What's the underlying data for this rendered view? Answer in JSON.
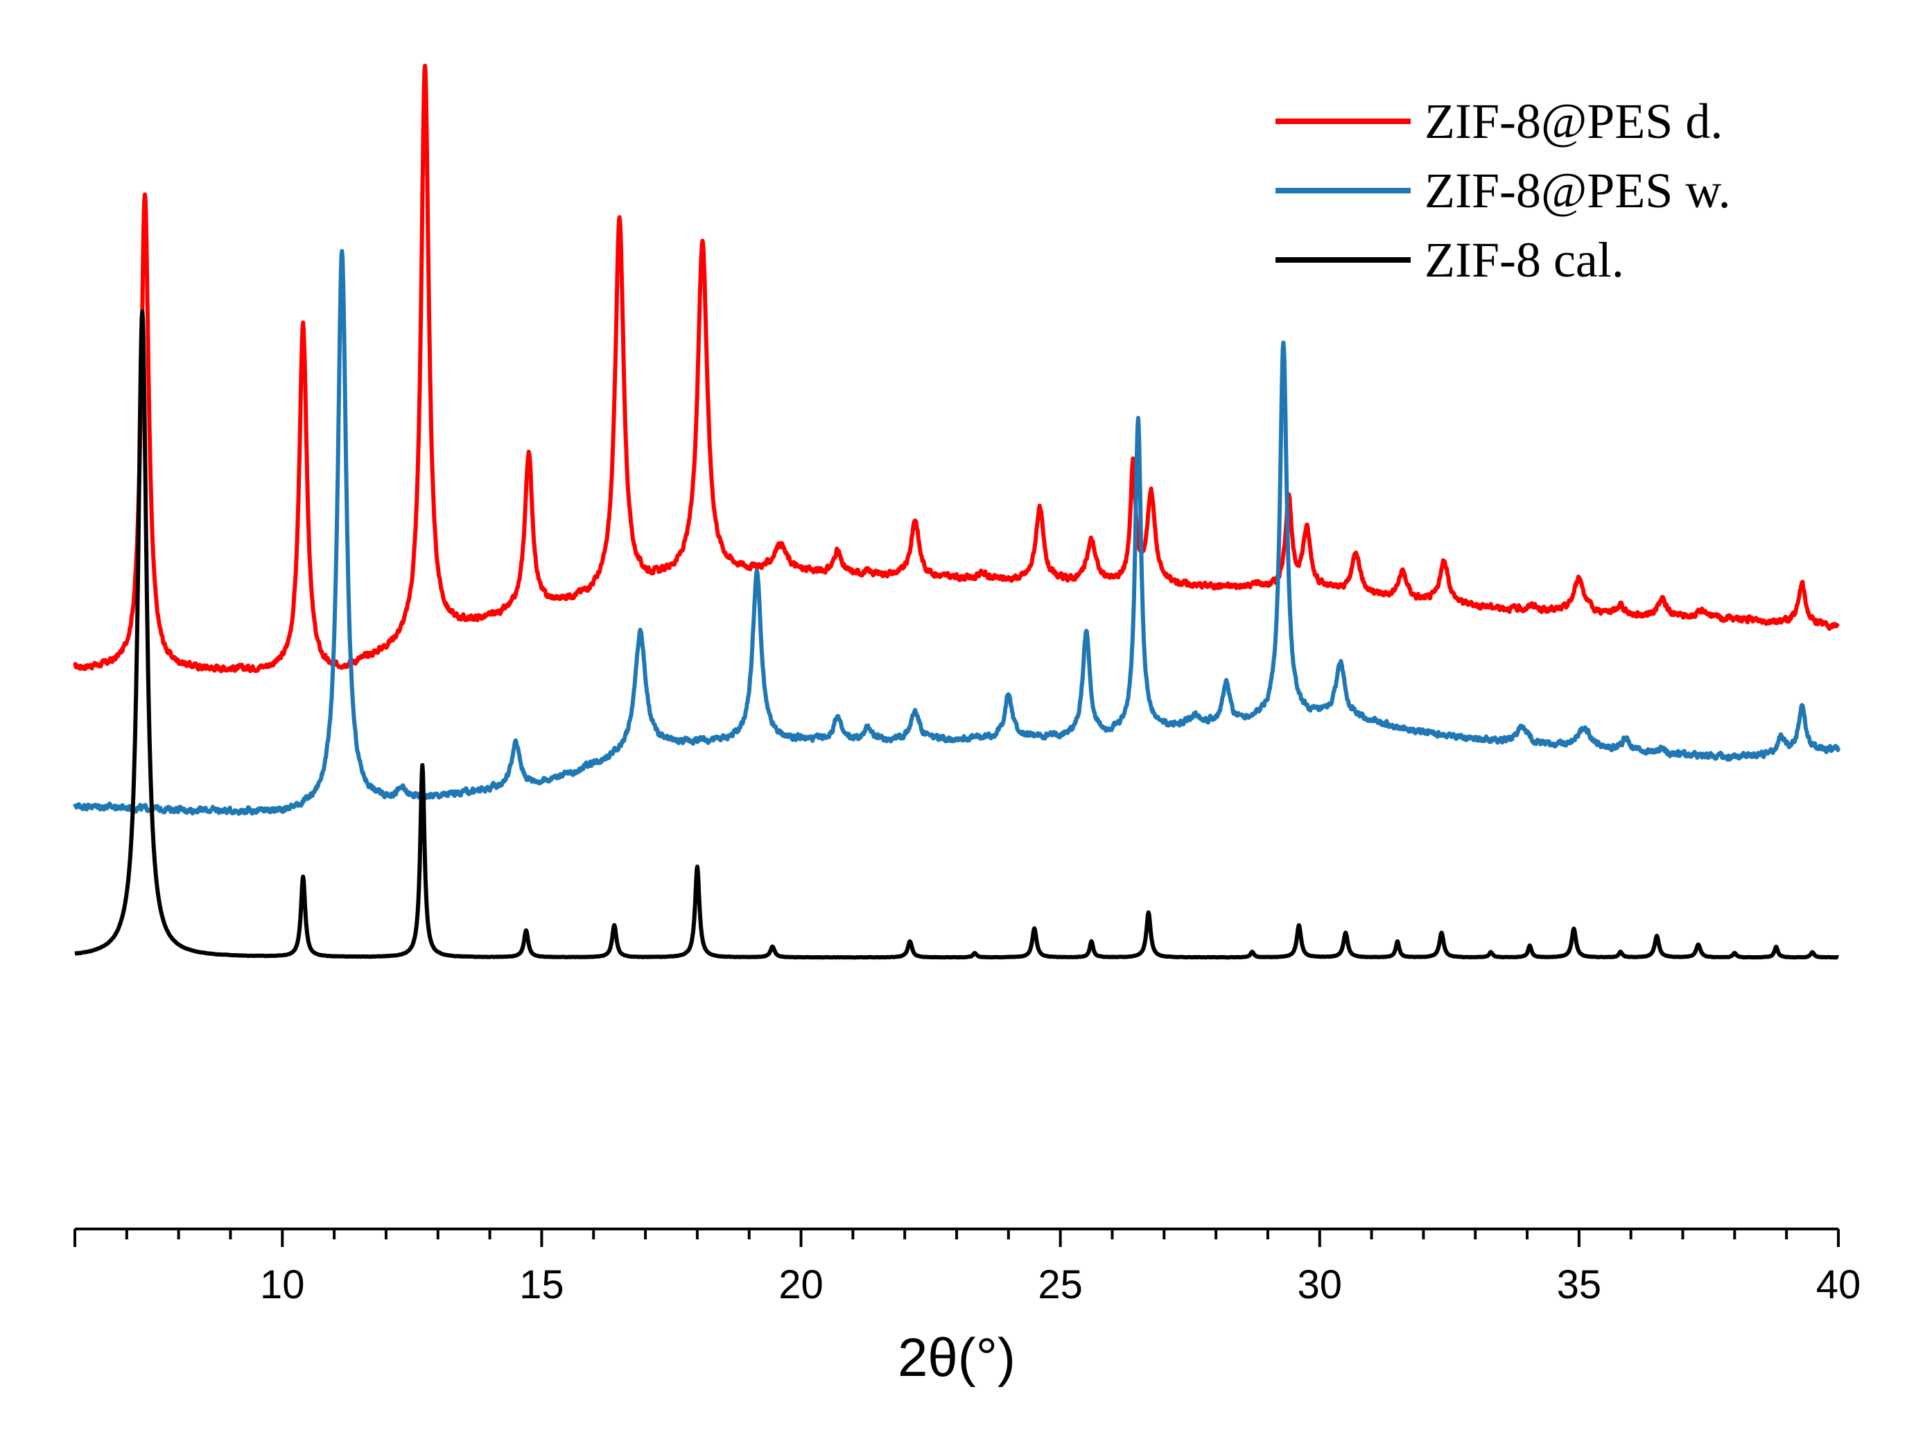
{
  "chart_data": {
    "type": "line",
    "title": "",
    "xlabel": "2θ(°)",
    "ylabel": "",
    "xlim": [
      6,
      40
    ],
    "ylim": [
      0,
      100
    ],
    "x_ticks": [
      10,
      15,
      20,
      25,
      30,
      35,
      40
    ],
    "minor_tick_step": 1,
    "grid": false,
    "legend_position": "top-right",
    "series": [
      {
        "name": "ZIF-8@PES d.",
        "color": "#ff0000",
        "baseline": [
          [
            6,
            42.5
          ],
          [
            9,
            42.3
          ],
          [
            11,
            42.0
          ],
          [
            13,
            45.8
          ],
          [
            14.5,
            47.6
          ],
          [
            16,
            49.2
          ],
          [
            18,
            51.5
          ],
          [
            20,
            51.5
          ],
          [
            22,
            51.2
          ],
          [
            24,
            50.8
          ],
          [
            26,
            50.5
          ],
          [
            28,
            50.2
          ],
          [
            30,
            50.0
          ],
          [
            32,
            48.8
          ],
          [
            34,
            48.0
          ],
          [
            36,
            47.5
          ],
          [
            38,
            47.2
          ],
          [
            40,
            46.5
          ]
        ],
        "peaks": [
          {
            "x": 7.35,
            "y": 87,
            "w": 0.09
          },
          {
            "x": 10.4,
            "y": 74.5,
            "w": 0.09
          },
          {
            "x": 12.75,
            "y": 99,
            "w": 0.09
          },
          {
            "x": 14.75,
            "y": 62.5,
            "w": 0.09
          },
          {
            "x": 16.5,
            "y": 84.5,
            "w": 0.1
          },
          {
            "x": 18.1,
            "y": 82.5,
            "w": 0.11
          },
          {
            "x": 19.6,
            "y": 54,
            "w": 0.15
          },
          {
            "x": 20.7,
            "y": 53.5,
            "w": 0.08
          },
          {
            "x": 21.3,
            "y": 51.5,
            "w": 0.1
          },
          {
            "x": 22.2,
            "y": 56.5,
            "w": 0.09
          },
          {
            "x": 23.5,
            "y": 51.5,
            "w": 0.08
          },
          {
            "x": 24.6,
            "y": 57.5,
            "w": 0.09
          },
          {
            "x": 25.6,
            "y": 54.5,
            "w": 0.1
          },
          {
            "x": 26.4,
            "y": 61.5,
            "w": 0.06
          },
          {
            "x": 26.75,
            "y": 59,
            "w": 0.09
          },
          {
            "x": 28.8,
            "y": 50.5,
            "w": 0.07
          },
          {
            "x": 29.4,
            "y": 58.5,
            "w": 0.07
          },
          {
            "x": 29.75,
            "y": 55.5,
            "w": 0.09
          },
          {
            "x": 30.7,
            "y": 53.5,
            "w": 0.09
          },
          {
            "x": 31.6,
            "y": 51.5,
            "w": 0.1
          },
          {
            "x": 32.4,
            "y": 52.5,
            "w": 0.1
          },
          {
            "x": 34.1,
            "y": 48.5,
            "w": 0.07
          },
          {
            "x": 35.0,
            "y": 51.0,
            "w": 0.12
          },
          {
            "x": 35.8,
            "y": 48.5,
            "w": 0.08
          },
          {
            "x": 36.6,
            "y": 49.0,
            "w": 0.1
          },
          {
            "x": 37.4,
            "y": 48.0,
            "w": 0.1
          },
          {
            "x": 39.3,
            "y": 50.5,
            "w": 0.08
          }
        ]
      },
      {
        "name": "ZIF-8@PES w.",
        "color": "#1f77b4",
        "baseline": [
          [
            6,
            29.7
          ],
          [
            8,
            29.3
          ],
          [
            10,
            29.0
          ],
          [
            11,
            29.5
          ],
          [
            13,
            30.5
          ],
          [
            15,
            31.8
          ],
          [
            16,
            33.5
          ],
          [
            17,
            35.2
          ],
          [
            18,
            35.6
          ],
          [
            20,
            35.8
          ],
          [
            22,
            35.8
          ],
          [
            24,
            36.0
          ],
          [
            26,
            36.2
          ],
          [
            27,
            36.8
          ],
          [
            28,
            37.3
          ],
          [
            29.5,
            37.8
          ],
          [
            30.5,
            38.0
          ],
          [
            32,
            36.5
          ],
          [
            34,
            35.5
          ],
          [
            36,
            34.8
          ],
          [
            38,
            34.2
          ],
          [
            40,
            35.0
          ]
        ],
        "peaks": [
          {
            "x": 11.15,
            "y": 81.5,
            "w": 0.1
          },
          {
            "x": 12.3,
            "y": 31.0,
            "w": 0.1
          },
          {
            "x": 14.5,
            "y": 35.5,
            "w": 0.1
          },
          {
            "x": 15.6,
            "y": 32.5,
            "w": 0.05
          },
          {
            "x": 16.9,
            "y": 46.0,
            "w": 0.12
          },
          {
            "x": 19.15,
            "y": 51.5,
            "w": 0.1
          },
          {
            "x": 20.7,
            "y": 38.0,
            "w": 0.08
          },
          {
            "x": 21.3,
            "y": 37.0,
            "w": 0.08
          },
          {
            "x": 22.2,
            "y": 38.5,
            "w": 0.1
          },
          {
            "x": 24.0,
            "y": 40.0,
            "w": 0.09
          },
          {
            "x": 25.5,
            "y": 46.0,
            "w": 0.08
          },
          {
            "x": 26.5,
            "y": 66.0,
            "w": 0.07
          },
          {
            "x": 27.6,
            "y": 38.0,
            "w": 0.15
          },
          {
            "x": 28.2,
            "y": 41.0,
            "w": 0.08
          },
          {
            "x": 29.3,
            "y": 73.0,
            "w": 0.08
          },
          {
            "x": 30.4,
            "y": 43.0,
            "w": 0.1
          },
          {
            "x": 33.9,
            "y": 37.0,
            "w": 0.12
          },
          {
            "x": 35.1,
            "y": 37.0,
            "w": 0.15
          },
          {
            "x": 35.9,
            "y": 36.0,
            "w": 0.08
          },
          {
            "x": 36.6,
            "y": 35.0,
            "w": 0.08
          },
          {
            "x": 38.9,
            "y": 36.0,
            "w": 0.08
          },
          {
            "x": 39.3,
            "y": 39.0,
            "w": 0.08
          }
        ]
      },
      {
        "name": "ZIF-8 cal.",
        "color": "#000000",
        "baseline": [
          [
            6,
            15.5
          ],
          [
            40,
            15.5
          ]
        ],
        "peaks": [
          {
            "x": 7.3,
            "y": 76.0,
            "w": 0.1
          },
          {
            "x": 10.4,
            "y": 23.0,
            "w": 0.05
          },
          {
            "x": 12.7,
            "y": 33.5,
            "w": 0.05
          },
          {
            "x": 14.7,
            "y": 18.0,
            "w": 0.05
          },
          {
            "x": 16.4,
            "y": 18.5,
            "w": 0.05
          },
          {
            "x": 18.0,
            "y": 24.0,
            "w": 0.05
          },
          {
            "x": 19.45,
            "y": 16.5,
            "w": 0.05
          },
          {
            "x": 22.1,
            "y": 17.0,
            "w": 0.05
          },
          {
            "x": 23.35,
            "y": 15.9,
            "w": 0.04
          },
          {
            "x": 24.5,
            "y": 18.2,
            "w": 0.05
          },
          {
            "x": 25.6,
            "y": 17.0,
            "w": 0.04
          },
          {
            "x": 26.7,
            "y": 19.7,
            "w": 0.05
          },
          {
            "x": 28.7,
            "y": 16.0,
            "w": 0.04
          },
          {
            "x": 29.6,
            "y": 18.5,
            "w": 0.05
          },
          {
            "x": 30.5,
            "y": 17.8,
            "w": 0.05
          },
          {
            "x": 31.5,
            "y": 17.0,
            "w": 0.04
          },
          {
            "x": 32.35,
            "y": 17.8,
            "w": 0.05
          },
          {
            "x": 33.3,
            "y": 16.0,
            "w": 0.04
          },
          {
            "x": 34.05,
            "y": 16.6,
            "w": 0.04
          },
          {
            "x": 34.9,
            "y": 18.2,
            "w": 0.05
          },
          {
            "x": 35.8,
            "y": 16.0,
            "w": 0.04
          },
          {
            "x": 36.5,
            "y": 17.5,
            "w": 0.05
          },
          {
            "x": 37.3,
            "y": 16.7,
            "w": 0.05
          },
          {
            "x": 38.0,
            "y": 15.9,
            "w": 0.04
          },
          {
            "x": 38.8,
            "y": 16.5,
            "w": 0.04
          },
          {
            "x": 39.5,
            "y": 16.0,
            "w": 0.04
          }
        ]
      }
    ]
  }
}
